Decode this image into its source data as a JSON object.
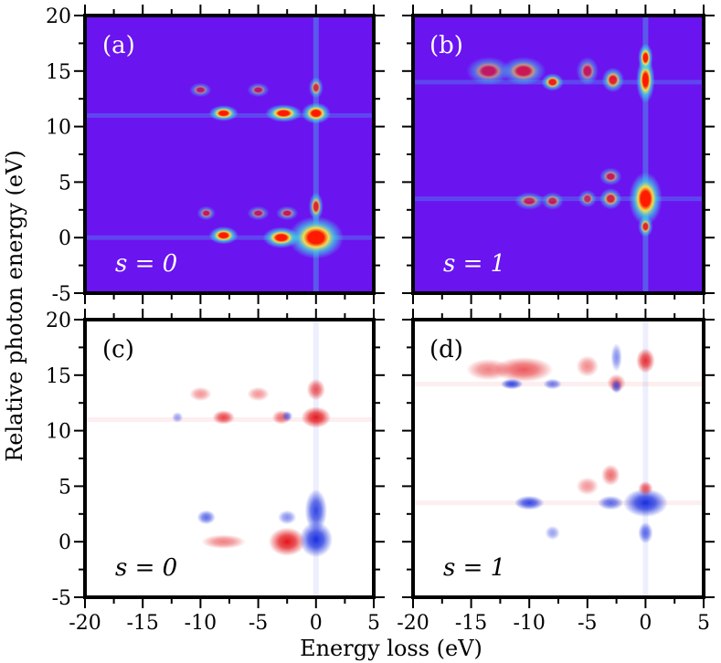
{
  "xlabel": "Energy loss (eV)",
  "ylabel": "Relative photon energy (eV)",
  "xlim": [
    -20,
    5
  ],
  "ylim": [
    -5,
    20
  ],
  "x_ticks": [
    "-20",
    "-15",
    "-10",
    "-5",
    "0",
    "5"
  ],
  "y_ticks": [
    "-5",
    "0",
    "5",
    "10",
    "15",
    "20"
  ],
  "colors": {
    "heatmap_background": "#6a14f0",
    "heatmap_glow": "#3fd6e6",
    "heatmap_mid": "#f6e64a",
    "heatmap_peak": "#ff1a00",
    "diff_positive": "#e3151a",
    "diff_negative": "#1a2fe0",
    "diff_zero": "#ffffff"
  },
  "panels": [
    {
      "id": "a",
      "label": "(a)",
      "s_label": "s = 0",
      "colormap": "rainbow"
    },
    {
      "id": "b",
      "label": "(b)",
      "s_label": "s = 1",
      "colormap": "rainbow"
    },
    {
      "id": "c",
      "label": "(c)",
      "s_label": "s = 0",
      "colormap": "diverging"
    },
    {
      "id": "d",
      "label": "(d)",
      "s_label": "s = 1",
      "colormap": "diverging"
    }
  ],
  "chart_data": [
    {
      "type": "heatmap",
      "panel": "(a)",
      "annotation": "s = 0",
      "xlabel": "Energy loss (eV)",
      "ylabel": "Relative photon energy (eV)",
      "xlim": [
        -20,
        5
      ],
      "ylim": [
        -5,
        20
      ],
      "lines": {
        "vertical_x": [
          0
        ],
        "horizontal_y": [
          0,
          11
        ]
      },
      "peaks": [
        {
          "x": 0,
          "y": 0,
          "intensity": 1.0,
          "sx": 1.5,
          "sy": 1.2
        },
        {
          "x": -3,
          "y": 0,
          "intensity": 0.9,
          "sx": 1.0,
          "sy": 0.6
        },
        {
          "x": -8,
          "y": 0.2,
          "intensity": 0.85,
          "sx": 0.8,
          "sy": 0.5
        },
        {
          "x": 0,
          "y": 2.8,
          "intensity": 0.6,
          "sx": 0.4,
          "sy": 0.8
        },
        {
          "x": -9.5,
          "y": 2.2,
          "intensity": 0.3,
          "sx": 0.5,
          "sy": 0.4
        },
        {
          "x": -5,
          "y": 2.2,
          "intensity": 0.25,
          "sx": 0.6,
          "sy": 0.4
        },
        {
          "x": -2.5,
          "y": 2.2,
          "intensity": 0.3,
          "sx": 0.6,
          "sy": 0.4
        },
        {
          "x": 0,
          "y": 11.2,
          "intensity": 1.0,
          "sx": 0.8,
          "sy": 0.6
        },
        {
          "x": -2.8,
          "y": 11.2,
          "intensity": 0.95,
          "sx": 1.0,
          "sy": 0.5
        },
        {
          "x": -8,
          "y": 11.2,
          "intensity": 0.85,
          "sx": 0.8,
          "sy": 0.45
        },
        {
          "x": 0,
          "y": 13.5,
          "intensity": 0.45,
          "sx": 0.4,
          "sy": 0.6
        },
        {
          "x": -10,
          "y": 13.3,
          "intensity": 0.25,
          "sx": 0.6,
          "sy": 0.4
        },
        {
          "x": -5,
          "y": 13.3,
          "intensity": 0.25,
          "sx": 0.6,
          "sy": 0.4
        }
      ]
    },
    {
      "type": "heatmap",
      "panel": "(b)",
      "annotation": "s = 1",
      "xlabel": "Energy loss (eV)",
      "ylabel": "Relative photon energy (eV)",
      "xlim": [
        -20,
        5
      ],
      "ylim": [
        -5,
        20
      ],
      "lines": {
        "vertical_x": [
          0
        ],
        "horizontal_y": [
          3.5,
          14
        ]
      },
      "peaks": [
        {
          "x": 0,
          "y": 3.5,
          "intensity": 1.0,
          "sx": 0.9,
          "sy": 1.5
        },
        {
          "x": 0,
          "y": 1.0,
          "intensity": 0.6,
          "sx": 0.4,
          "sy": 0.6
        },
        {
          "x": -3,
          "y": 3.5,
          "intensity": 0.5,
          "sx": 0.6,
          "sy": 0.6
        },
        {
          "x": -3,
          "y": 5.5,
          "intensity": 0.35,
          "sx": 0.6,
          "sy": 0.5
        },
        {
          "x": -5,
          "y": 3.5,
          "intensity": 0.3,
          "sx": 0.5,
          "sy": 0.5
        },
        {
          "x": -8,
          "y": 3.3,
          "intensity": 0.3,
          "sx": 0.6,
          "sy": 0.5
        },
        {
          "x": -10,
          "y": 3.3,
          "intensity": 0.3,
          "sx": 0.8,
          "sy": 0.5
        },
        {
          "x": 0,
          "y": 14.2,
          "intensity": 1.0,
          "sx": 0.5,
          "sy": 1.3
        },
        {
          "x": 0,
          "y": 16.2,
          "intensity": 0.85,
          "sx": 0.4,
          "sy": 0.8
        },
        {
          "x": -2.8,
          "y": 14.2,
          "intensity": 0.6,
          "sx": 0.6,
          "sy": 0.7
        },
        {
          "x": -8,
          "y": 14.0,
          "intensity": 0.7,
          "sx": 0.6,
          "sy": 0.5
        },
        {
          "x": -10.5,
          "y": 15.0,
          "intensity": 0.4,
          "sx": 1.2,
          "sy": 0.8
        },
        {
          "x": -13.5,
          "y": 15.0,
          "intensity": 0.3,
          "sx": 1.2,
          "sy": 0.8
        },
        {
          "x": -5,
          "y": 15.0,
          "intensity": 0.3,
          "sx": 0.6,
          "sy": 0.8
        }
      ]
    },
    {
      "type": "heatmap",
      "panel": "(c)",
      "annotation": "s = 0",
      "xlabel": "Energy loss (eV)",
      "ylabel": "Relative photon energy (eV)",
      "xlim": [
        -20,
        5
      ],
      "ylim": [
        -5,
        20
      ],
      "lines": {
        "vertical_x": [
          0
        ],
        "horizontal_y": [
          11
        ]
      },
      "peaks": [
        {
          "x": -2.5,
          "y": 0,
          "intensity": 1.0,
          "sx": 1.0,
          "sy": 0.8
        },
        {
          "x": -8,
          "y": 0,
          "intensity": 0.4,
          "sx": 1.2,
          "sy": 0.4
        },
        {
          "x": 0,
          "y": 0.2,
          "intensity": -1.0,
          "sx": 0.9,
          "sy": 1.0
        },
        {
          "x": 0,
          "y": 2.8,
          "intensity": -0.8,
          "sx": 0.6,
          "sy": 1.2
        },
        {
          "x": -9.5,
          "y": 2.2,
          "intensity": -0.6,
          "sx": 0.5,
          "sy": 0.4
        },
        {
          "x": -2.5,
          "y": 2.2,
          "intensity": -0.4,
          "sx": 0.5,
          "sy": 0.4
        },
        {
          "x": 0,
          "y": 11.2,
          "intensity": 0.9,
          "sx": 0.8,
          "sy": 0.6
        },
        {
          "x": -8,
          "y": 11.2,
          "intensity": 0.7,
          "sx": 0.6,
          "sy": 0.4
        },
        {
          "x": -3,
          "y": 11.2,
          "intensity": 0.5,
          "sx": 0.5,
          "sy": 0.4
        },
        {
          "x": -2.5,
          "y": 11.3,
          "intensity": -0.5,
          "sx": 0.3,
          "sy": 0.3
        },
        {
          "x": -12,
          "y": 11.2,
          "intensity": -0.3,
          "sx": 0.3,
          "sy": 0.3
        },
        {
          "x": 0,
          "y": 13.7,
          "intensity": 0.6,
          "sx": 0.5,
          "sy": 0.6
        },
        {
          "x": -10,
          "y": 13.3,
          "intensity": 0.3,
          "sx": 0.6,
          "sy": 0.4
        },
        {
          "x": -5,
          "y": 13.3,
          "intensity": 0.3,
          "sx": 0.6,
          "sy": 0.4
        }
      ]
    },
    {
      "type": "heatmap",
      "panel": "(d)",
      "annotation": "s = 1",
      "xlabel": "Energy loss (eV)",
      "ylabel": "Relative photon energy (eV)",
      "xlim": [
        -20,
        5
      ],
      "ylim": [
        -5,
        20
      ],
      "lines": {
        "vertical_x": [
          0
        ],
        "horizontal_y": [
          3.5,
          14.2
        ]
      },
      "peaks": [
        {
          "x": 0,
          "y": 3.5,
          "intensity": -1.0,
          "sx": 1.2,
          "sy": 0.8
        },
        {
          "x": -10,
          "y": 3.5,
          "intensity": -0.8,
          "sx": 0.8,
          "sy": 0.4
        },
        {
          "x": -3,
          "y": 3.5,
          "intensity": -0.6,
          "sx": 0.7,
          "sy": 0.4
        },
        {
          "x": 0,
          "y": 0.8,
          "intensity": -0.6,
          "sx": 0.4,
          "sy": 0.6
        },
        {
          "x": -8,
          "y": 0.8,
          "intensity": -0.3,
          "sx": 0.4,
          "sy": 0.4
        },
        {
          "x": 0,
          "y": 4.8,
          "intensity": 0.6,
          "sx": 0.4,
          "sy": 0.4
        },
        {
          "x": -3,
          "y": 6.0,
          "intensity": 0.5,
          "sx": 0.5,
          "sy": 0.6
        },
        {
          "x": -5,
          "y": 5.0,
          "intensity": 0.3,
          "sx": 0.6,
          "sy": 0.5
        },
        {
          "x": 0,
          "y": 16.3,
          "intensity": 0.8,
          "sx": 0.5,
          "sy": 0.7
        },
        {
          "x": -10.5,
          "y": 15.5,
          "intensity": 0.6,
          "sx": 1.6,
          "sy": 0.7
        },
        {
          "x": -13.5,
          "y": 15.5,
          "intensity": 0.4,
          "sx": 1.2,
          "sy": 0.6
        },
        {
          "x": -5,
          "y": 15.8,
          "intensity": 0.35,
          "sx": 0.6,
          "sy": 0.6
        },
        {
          "x": -2.5,
          "y": 14.3,
          "intensity": 0.5,
          "sx": 0.5,
          "sy": 0.5
        },
        {
          "x": -11.5,
          "y": 14.2,
          "intensity": -0.8,
          "sx": 0.6,
          "sy": 0.3
        },
        {
          "x": -8,
          "y": 14.2,
          "intensity": -0.5,
          "sx": 0.5,
          "sy": 0.3
        },
        {
          "x": -2.5,
          "y": 14.0,
          "intensity": -0.6,
          "sx": 0.3,
          "sy": 0.4
        },
        {
          "x": -2.5,
          "y": 16.6,
          "intensity": -0.4,
          "sx": 0.3,
          "sy": 0.8
        }
      ]
    }
  ]
}
